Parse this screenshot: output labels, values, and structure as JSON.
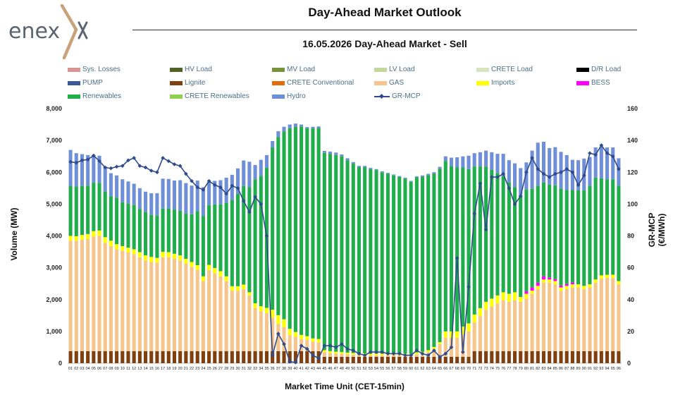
{
  "brand": {
    "name": "enex"
  },
  "header": {
    "title": "Day-Ahead Market Outlook",
    "subtitle": "16.05.2026  Day-Ahead Market - Sell"
  },
  "colors": {
    "sys_losses": "#d99694",
    "hv_load": "#4f6228",
    "mv_load": "#77933c",
    "lv_load": "#c3d69b",
    "crete_load": "#d7e4bd",
    "dr_load": "#000000",
    "pump": "#3b5998",
    "lignite": "#7f3f0f",
    "crete_conventional": "#e26b0a",
    "gas": "#f5c58c",
    "imports": "#ffff00",
    "bess": "#ff00ff",
    "renewables": "#1fae4b",
    "crete_renewables": "#92d050",
    "hydro": "#6f8fd8",
    "gr_mcp": "#2f4b8c"
  },
  "chart_data": {
    "type": "bar",
    "stacked": true,
    "title": "16.05.2026  Day-Ahead Market - Sell",
    "xlabel": "Market Time Unit (CET-15min)",
    "ylabel": "Volume (MW)",
    "y2label": "GR-MCP (€/MWh)",
    "ylim": [
      0,
      8000
    ],
    "y2lim": [
      0,
      160
    ],
    "yticks": [
      "0",
      "1,000",
      "2,000",
      "3,000",
      "4,000",
      "5,000",
      "6,000",
      "7,000",
      "8,000"
    ],
    "y2ticks": [
      "0",
      "20",
      "40",
      "60",
      "80",
      "100",
      "120",
      "140",
      "160"
    ],
    "grid": false,
    "legend_position": "top",
    "categories": [
      "01",
      "02",
      "03",
      "04",
      "05",
      "06",
      "07",
      "08",
      "09",
      "10",
      "11",
      "12",
      "13",
      "14",
      "15",
      "16",
      "17",
      "18",
      "19",
      "20",
      "21",
      "22",
      "23",
      "24",
      "25",
      "26",
      "27",
      "28",
      "29",
      "30",
      "31",
      "32",
      "33",
      "34",
      "35",
      "36",
      "37",
      "38",
      "39",
      "40",
      "41",
      "42",
      "43",
      "44",
      "45",
      "46",
      "47",
      "48",
      "49",
      "50",
      "51",
      "52",
      "53",
      "54",
      "55",
      "56",
      "57",
      "58",
      "59",
      "60",
      "61",
      "62",
      "63",
      "64",
      "65",
      "66",
      "67",
      "68",
      "69",
      "70",
      "71",
      "72",
      "73",
      "74",
      "75",
      "76",
      "77",
      "78",
      "79",
      "80",
      "81",
      "82",
      "83",
      "84",
      "85",
      "86",
      "87",
      "88",
      "89",
      "90",
      "91",
      "92",
      "93",
      "94",
      "95",
      "96"
    ],
    "legend": [
      {
        "name": "Sys. Losses",
        "color_key": "sys_losses",
        "kind": "bar"
      },
      {
        "name": "HV Load",
        "color_key": "hv_load",
        "kind": "bar"
      },
      {
        "name": "MV Load",
        "color_key": "mv_load",
        "kind": "bar"
      },
      {
        "name": "LV Load",
        "color_key": "lv_load",
        "kind": "bar"
      },
      {
        "name": "CRETE Load",
        "color_key": "crete_load",
        "kind": "bar"
      },
      {
        "name": "D/R Load",
        "color_key": "dr_load",
        "kind": "bar"
      },
      {
        "name": "PUMP",
        "color_key": "pump",
        "kind": "bar"
      },
      {
        "name": "Lignite",
        "color_key": "lignite",
        "kind": "bar"
      },
      {
        "name": "CRETE Conventional",
        "color_key": "crete_conventional",
        "kind": "bar"
      },
      {
        "name": "GAS",
        "color_key": "gas",
        "kind": "bar"
      },
      {
        "name": "Imports",
        "color_key": "imports",
        "kind": "bar"
      },
      {
        "name": "BESS",
        "color_key": "bess",
        "kind": "bar"
      },
      {
        "name": "Renewables",
        "color_key": "renewables",
        "kind": "bar"
      },
      {
        "name": "CRETE Renewables",
        "color_key": "crete_renewables",
        "kind": "bar"
      },
      {
        "name": "Hydro",
        "color_key": "hydro",
        "kind": "bar"
      },
      {
        "name": "GR-MCP",
        "color_key": "gr_mcp",
        "kind": "line"
      }
    ],
    "series": [
      {
        "name": "Lignite",
        "color_key": "lignite",
        "values": [
          380,
          380,
          380,
          380,
          380,
          380,
          380,
          380,
          380,
          380,
          380,
          380,
          380,
          380,
          380,
          380,
          380,
          380,
          380,
          380,
          380,
          380,
          380,
          380,
          380,
          380,
          380,
          380,
          380,
          380,
          380,
          380,
          380,
          380,
          380,
          380,
          380,
          380,
          380,
          380,
          380,
          380,
          380,
          380,
          200,
          200,
          200,
          200,
          200,
          200,
          200,
          200,
          200,
          200,
          200,
          200,
          200,
          200,
          200,
          200,
          200,
          200,
          200,
          200,
          200,
          200,
          200,
          200,
          200,
          200,
          380,
          380,
          380,
          380,
          380,
          380,
          380,
          380,
          380,
          380,
          380,
          380,
          380,
          380,
          380,
          380,
          380,
          380,
          380,
          380,
          380,
          380,
          380,
          380,
          380,
          380
        ]
      },
      {
        "name": "GAS",
        "color_key": "gas",
        "values": [
          3470,
          3470,
          3500,
          3520,
          3600,
          3620,
          3400,
          3300,
          3200,
          3150,
          3100,
          3050,
          2950,
          2850,
          2800,
          2780,
          2950,
          2950,
          2900,
          2850,
          2750,
          2650,
          2550,
          2200,
          2550,
          2450,
          2350,
          2200,
          1900,
          1900,
          1950,
          1750,
          1350,
          1250,
          1200,
          1050,
          850,
          750,
          500,
          450,
          380,
          350,
          300,
          280,
          150,
          120,
          100,
          100,
          80,
          70,
          60,
          60,
          50,
          50,
          50,
          50,
          50,
          50,
          50,
          50,
          80,
          100,
          150,
          250,
          400,
          600,
          600,
          600,
          700,
          800,
          900,
          1100,
          1300,
          1400,
          1500,
          1600,
          1550,
          1600,
          1550,
          1650,
          1800,
          1950,
          2150,
          2150,
          2100,
          1900,
          1950,
          2000,
          2000,
          1950,
          2000,
          2150,
          2280,
          2300,
          2300,
          2100
        ]
      },
      {
        "name": "Imports",
        "color_key": "imports",
        "values": [
          150,
          140,
          150,
          160,
          170,
          170,
          180,
          170,
          160,
          150,
          150,
          150,
          160,
          160,
          160,
          150,
          170,
          160,
          160,
          160,
          150,
          150,
          150,
          150,
          160,
          160,
          160,
          150,
          140,
          140,
          140,
          100,
          150,
          160,
          160,
          250,
          280,
          250,
          200,
          150,
          130,
          120,
          100,
          100,
          60,
          60,
          60,
          50,
          50,
          50,
          50,
          50,
          50,
          50,
          50,
          50,
          50,
          50,
          50,
          50,
          60,
          60,
          60,
          60,
          60,
          200,
          200,
          200,
          250,
          250,
          250,
          250,
          250,
          250,
          250,
          250,
          250,
          250,
          150,
          150,
          100,
          100,
          100,
          100,
          100,
          100,
          100,
          100,
          100,
          100,
          100,
          100,
          100,
          100,
          100,
          100
        ]
      },
      {
        "name": "BESS",
        "color_key": "bess",
        "values": [
          0,
          0,
          0,
          0,
          0,
          0,
          0,
          0,
          0,
          0,
          0,
          0,
          0,
          0,
          0,
          0,
          0,
          0,
          0,
          0,
          0,
          0,
          0,
          0,
          0,
          0,
          0,
          0,
          0,
          0,
          0,
          0,
          0,
          0,
          0,
          0,
          0,
          0,
          0,
          0,
          0,
          0,
          0,
          0,
          0,
          0,
          0,
          0,
          0,
          0,
          0,
          0,
          0,
          0,
          0,
          0,
          0,
          0,
          0,
          0,
          0,
          0,
          0,
          0,
          0,
          0,
          0,
          0,
          0,
          0,
          0,
          0,
          0,
          0,
          0,
          0,
          0,
          0,
          0,
          80,
          100,
          100,
          100,
          60,
          60,
          60,
          60,
          60,
          0,
          0,
          0,
          0,
          0,
          0,
          0,
          0
        ]
      },
      {
        "name": "Renewables",
        "color_key": "renewables",
        "values": [
          1580,
          1560,
          1540,
          1520,
          1530,
          1500,
          1440,
          1400,
          1460,
          1380,
          1380,
          1400,
          1360,
          1360,
          1320,
          1330,
          1360,
          1370,
          1380,
          1400,
          1420,
          1500,
          1700,
          1900,
          1880,
          2000,
          2100,
          2300,
          2700,
          2900,
          3100,
          3300,
          3900,
          4100,
          4400,
          5100,
          5600,
          5900,
          6300,
          6450,
          6550,
          6530,
          6600,
          6630,
          6200,
          6200,
          6180,
          6150,
          6050,
          5950,
          5850,
          5850,
          5800,
          5770,
          5700,
          5650,
          5600,
          5550,
          5500,
          5400,
          5500,
          5500,
          5500,
          5450,
          5450,
          5350,
          5200,
          5150,
          5000,
          4850,
          4650,
          4450,
          4250,
          4050,
          3850,
          3650,
          3500,
          3300,
          3200,
          3200,
          3100,
          3050,
          2950,
          2920,
          2950,
          3050,
          2950,
          2900,
          2950,
          3000,
          3100,
          3200,
          3050,
          3000,
          3000,
          3000
        ]
      },
      {
        "name": "Hydro",
        "color_key": "hydro",
        "values": [
          1120,
          1050,
          1000,
          960,
          850,
          850,
          780,
          720,
          700,
          720,
          700,
          660,
          650,
          640,
          680,
          700,
          940,
          930,
          920,
          960,
          960,
          900,
          960,
          900,
          720,
          740,
          760,
          800,
          800,
          800,
          800,
          800,
          450,
          500,
          400,
          200,
          180,
          150,
          120,
          100,
          60,
          40,
          50,
          50,
          60,
          70,
          80,
          60,
          60,
          50,
          40,
          40,
          40,
          30,
          30,
          30,
          30,
          30,
          30,
          30,
          30,
          40,
          40,
          40,
          60,
          150,
          260,
          320,
          350,
          420,
          420,
          450,
          500,
          550,
          600,
          700,
          700,
          750,
          850,
          850,
          1200,
          1350,
          1280,
          1150,
          1200,
          1150,
          1100,
          950,
          950,
          1000,
          900,
          950,
          1000,
          1000,
          1000,
          860
        ]
      },
      {
        "name": "GR-MCP",
        "color_key": "gr_mcp",
        "axis": "right",
        "values": [
          126.5,
          126,
          127.5,
          128,
          130.5,
          127,
          123,
          122.5,
          123.5,
          124,
          127.5,
          129,
          124,
          123,
          121,
          120,
          129,
          127,
          125,
          124,
          119,
          114.5,
          110.5,
          109,
          114.5,
          112,
          110.5,
          106.5,
          111.5,
          110,
          102,
          95,
          104.5,
          100,
          80,
          5,
          18.5,
          12,
          1,
          0.5,
          11,
          9,
          5,
          3,
          11,
          11,
          10,
          12,
          9,
          8,
          6,
          5,
          7,
          7,
          7,
          6,
          6,
          6,
          5,
          5,
          8,
          6,
          5,
          8,
          4,
          6,
          10,
          66,
          7,
          48,
          94,
          113,
          84,
          117,
          117,
          119,
          110,
          100,
          105,
          120,
          129,
          122,
          119,
          117,
          119,
          120,
          122,
          120,
          112,
          118,
          132,
          131,
          137,
          132,
          130,
          122
        ]
      }
    ]
  }
}
